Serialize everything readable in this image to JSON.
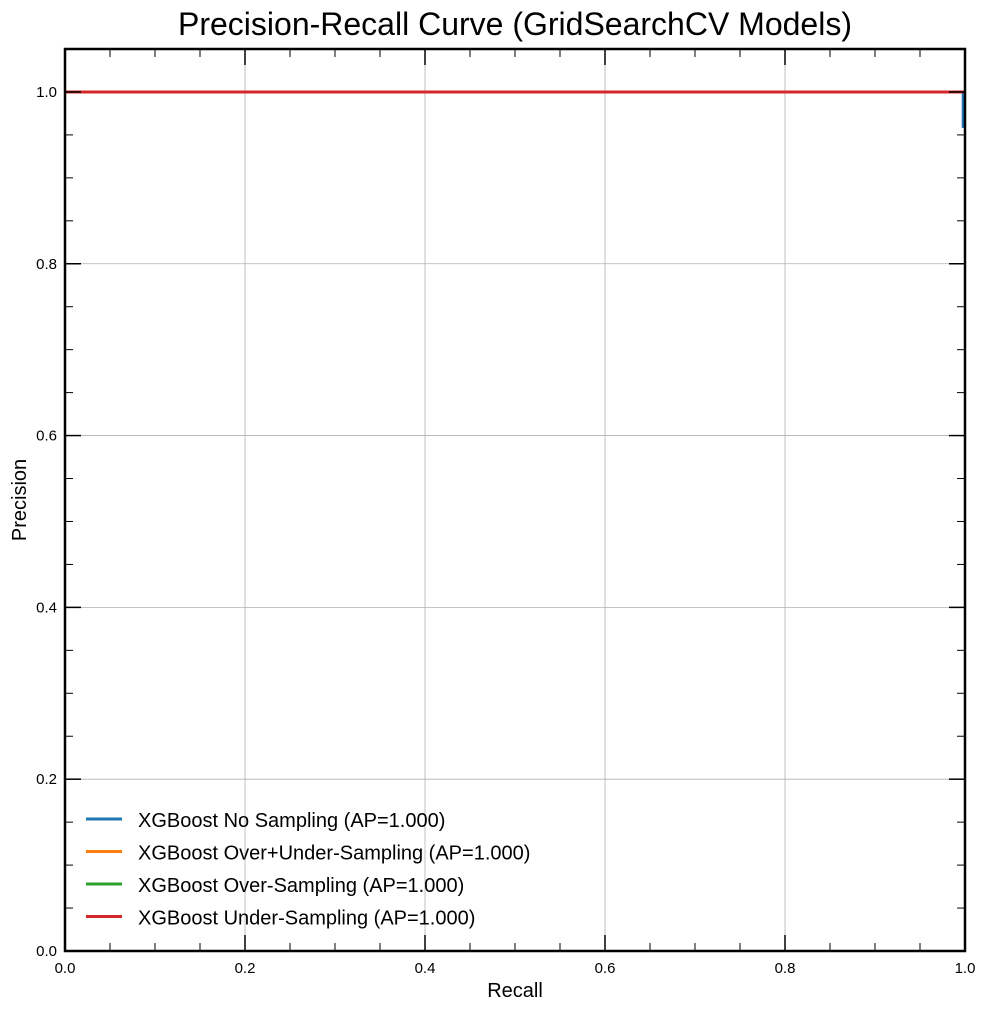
{
  "chart_data": {
    "type": "line",
    "title": "Precision-Recall Curve (GridSearchCV Models)",
    "xlabel": "Recall",
    "ylabel": "Precision",
    "xlim": [
      0.0,
      1.0
    ],
    "ylim": [
      0.0,
      1.05
    ],
    "xticks": [
      "0.0",
      "0.2",
      "0.4",
      "0.6",
      "0.8",
      "1.0"
    ],
    "yticks": [
      "0.0",
      "0.2",
      "0.4",
      "0.6",
      "0.8",
      "1.0"
    ],
    "grid": true,
    "legend_position": "lower-left",
    "series": [
      {
        "name": "XGBoost No Sampling (AP=1.000)",
        "color": "#1f77b4",
        "x": [
          0.0,
          0.998,
          0.998,
          1.0
        ],
        "y": [
          1.0,
          1.0,
          0.96,
          0.96
        ]
      },
      {
        "name": "XGBoost Over+Under-Sampling (AP=1.000)",
        "color": "#ff7f0e",
        "x": [
          0.0,
          1.0
        ],
        "y": [
          1.0,
          1.0
        ]
      },
      {
        "name": "XGBoost Over-Sampling (AP=1.000)",
        "color": "#2ca02c",
        "x": [
          0.0,
          1.0
        ],
        "y": [
          1.0,
          1.0
        ]
      },
      {
        "name": "XGBoost Under-Sampling (AP=1.000)",
        "color": "#d62728",
        "x": [
          0.0,
          1.0
        ],
        "y": [
          1.0,
          1.0
        ]
      }
    ]
  }
}
